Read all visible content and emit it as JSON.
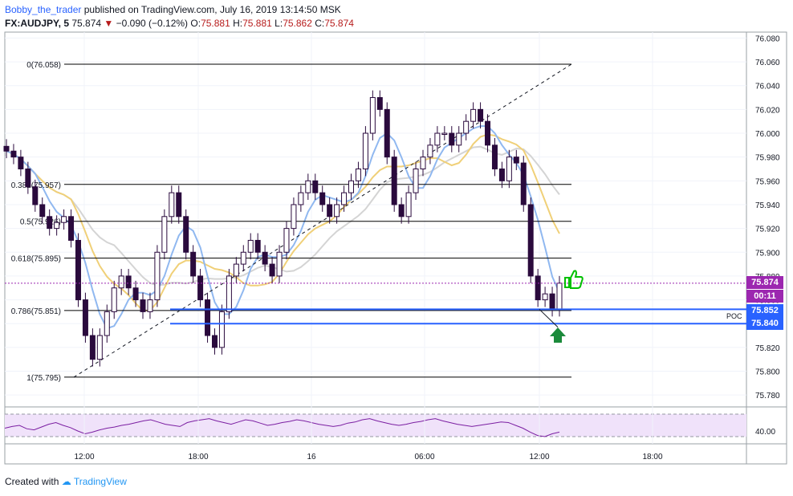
{
  "header": {
    "author": "Bobby_the_trader",
    "published_text": "published on TradingView.com, July 16, 2019 13:14:50 MSK",
    "symbol": "FX:AUDJPY, 5",
    "last": "75.874",
    "change": "−0.090 (−0.12%)",
    "o_label": "O:",
    "o_val": "75.881",
    "h_label": "H:",
    "h_val": "75.881",
    "l_label": "L:",
    "l_val": "75.862",
    "c_label": "C:",
    "c_val": "75.874"
  },
  "footer": {
    "created_with": "Created with",
    "brand": "TradingView"
  },
  "price_tags": {
    "last": "75.874",
    "countdown": "00:11",
    "level1": "75.852",
    "level2": "75.840"
  },
  "poc_label": "POC",
  "colors": {
    "candle": "#2a0a3d",
    "fib_line": "#000000",
    "blue_level": "#2962ff",
    "ma_fast": "#90b8f0",
    "ma_mid": "#f0d078",
    "ma_slow": "#d4d4d4",
    "rsi_line": "#7b1fa2",
    "rsi_fill": "#f0e2fa",
    "last_tag": "#9c27b0",
    "arrow": "#1b8a3b",
    "thumb": "#00c000"
  },
  "chart_data": {
    "type": "line",
    "note": "candlestick price chart, AUDJPY 5-minute",
    "price_axis": {
      "ticks": [
        "76.080",
        "76.060",
        "76.040",
        "76.020",
        "76.000",
        "75.980",
        "75.960",
        "75.940",
        "75.920",
        "75.900",
        "75.880",
        "75.860",
        "75.840",
        "75.820",
        "75.800",
        "75.780"
      ],
      "range": [
        75.77,
        76.085
      ]
    },
    "time_axis": {
      "ticks": [
        "12:00",
        "18:00",
        "16",
        "06:00",
        "12:00",
        "18:00"
      ]
    },
    "fib_levels": [
      {
        "label": "0(76.058)",
        "value": 76.058
      },
      {
        "label": "0.382(75.957)",
        "value": 75.957
      },
      {
        "label": "0.5(75.926)",
        "value": 75.926
      },
      {
        "label": "0.618(75.895)",
        "value": 75.895
      },
      {
        "label": "0.786(75.851)",
        "value": 75.851
      },
      {
        "label": "1(75.795)",
        "value": 75.795
      }
    ],
    "levels": [
      75.852,
      75.84
    ],
    "last_price": 75.874,
    "close_series": [
      75.985,
      75.98,
      75.97,
      75.955,
      75.94,
      75.93,
      75.92,
      75.925,
      75.93,
      75.91,
      75.86,
      75.83,
      75.81,
      75.83,
      75.85,
      75.87,
      75.88,
      75.87,
      75.86,
      75.85,
      75.86,
      75.9,
      75.93,
      75.95,
      75.93,
      75.9,
      75.88,
      75.86,
      75.83,
      75.82,
      75.85,
      75.88,
      75.89,
      75.9,
      75.91,
      75.9,
      75.89,
      75.88,
      75.9,
      75.92,
      75.94,
      75.95,
      75.96,
      75.95,
      75.94,
      75.93,
      75.94,
      75.95,
      75.96,
      75.97,
      76.0,
      76.03,
      76.02,
      75.98,
      75.94,
      75.93,
      75.95,
      75.97,
      75.98,
      75.99,
      76.0,
      76.0,
      75.99,
      76.0,
      76.01,
      76.02,
      76.01,
      75.99,
      75.97,
      75.96,
      75.98,
      75.975,
      75.94,
      75.88,
      75.86,
      75.865,
      75.852,
      75.874
    ],
    "rsi": {
      "ticks": [
        "40.00"
      ],
      "range": [
        20,
        80
      ],
      "upper": 70,
      "lower": 30,
      "values": [
        45,
        48,
        50,
        44,
        42,
        47,
        52,
        55,
        50,
        46,
        40,
        35,
        38,
        42,
        45,
        47,
        50,
        52,
        55,
        58,
        60,
        56,
        52,
        50,
        48,
        55,
        58,
        60,
        62,
        58,
        55,
        52,
        56,
        60,
        58,
        54,
        50,
        52,
        55,
        57,
        60,
        58,
        55,
        52,
        50,
        48,
        50,
        54,
        56,
        60,
        62,
        58,
        55,
        52,
        50,
        52,
        55,
        57,
        60,
        62,
        58,
        55,
        52,
        50,
        48,
        50,
        52,
        54,
        56,
        55,
        50,
        45,
        38,
        32,
        30,
        35,
        38
      ]
    }
  }
}
